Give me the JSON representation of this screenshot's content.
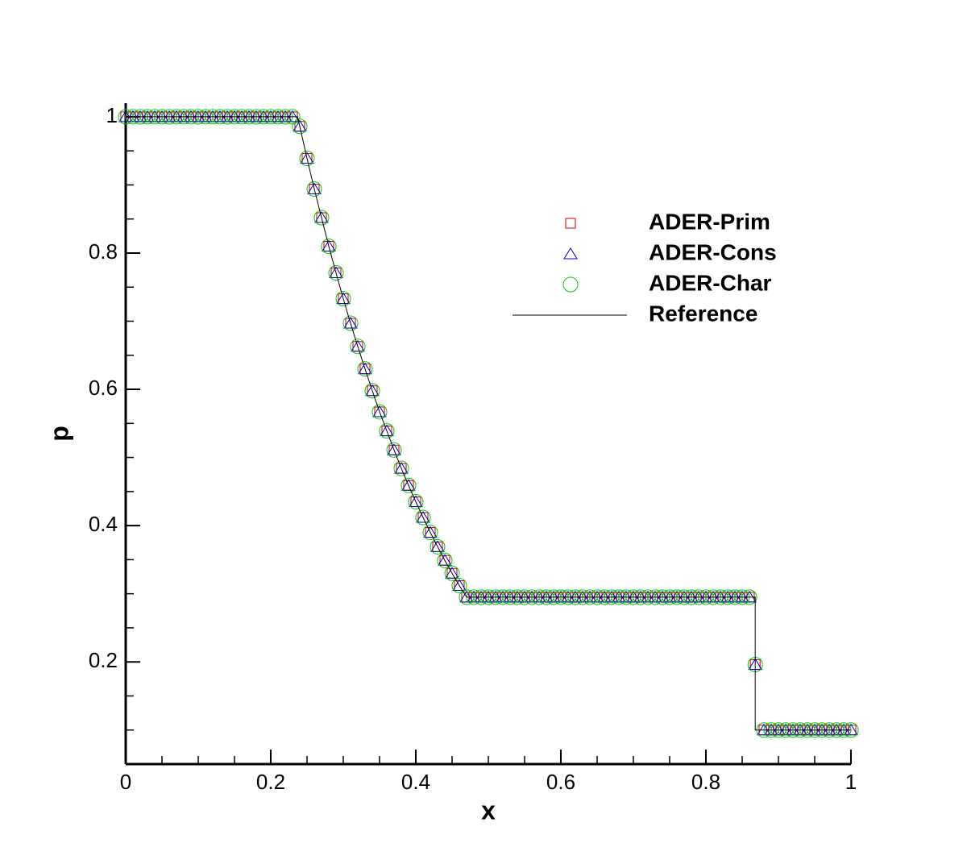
{
  "chart_data": {
    "type": "scatter",
    "xlabel": "x",
    "ylabel": "p",
    "xlim": [
      0,
      1
    ],
    "ylim": [
      0.05,
      1.02
    ],
    "xticks": [
      0,
      0.2,
      0.4,
      0.6,
      0.8,
      1
    ],
    "yticks": [
      0.2,
      0.4,
      0.6,
      0.8,
      1
    ],
    "xminorticks": [
      0.05,
      0.1,
      0.15,
      0.25,
      0.3,
      0.35,
      0.45,
      0.5,
      0.55,
      0.65,
      0.7,
      0.75,
      0.85,
      0.9,
      0.95
    ],
    "yminorticks": [
      0.1,
      0.15,
      0.25,
      0.3,
      0.35,
      0.45,
      0.5,
      0.55,
      0.65,
      0.7,
      0.75,
      0.85,
      0.9,
      0.95
    ],
    "legend": "upper right",
    "x": [
      0,
      0.01,
      0.02,
      0.03,
      0.04,
      0.05,
      0.06,
      0.07,
      0.08,
      0.09,
      0.1,
      0.11,
      0.12,
      0.13,
      0.14,
      0.15,
      0.16,
      0.17,
      0.18,
      0.19,
      0.2,
      0.21,
      0.22,
      0.23,
      0.24,
      0.25,
      0.26,
      0.27,
      0.28,
      0.29,
      0.3,
      0.31,
      0.32,
      0.33,
      0.34,
      0.35,
      0.36,
      0.37,
      0.38,
      0.39,
      0.4,
      0.41,
      0.42,
      0.43,
      0.44,
      0.45,
      0.46,
      0.47,
      0.48,
      0.49,
      0.5,
      0.51,
      0.52,
      0.53,
      0.54,
      0.55,
      0.56,
      0.57,
      0.58,
      0.59,
      0.6,
      0.61,
      0.62,
      0.63,
      0.64,
      0.65,
      0.66,
      0.67,
      0.68,
      0.69,
      0.7,
      0.71,
      0.72,
      0.73,
      0.74,
      0.75,
      0.76,
      0.77,
      0.78,
      0.79,
      0.8,
      0.81,
      0.82,
      0.83,
      0.84,
      0.85,
      0.86,
      0.868,
      0.88,
      0.89,
      0.9,
      0.91,
      0.92,
      0.93,
      0.94,
      0.95,
      0.96,
      0.97,
      0.98,
      0.99,
      1
    ],
    "series": [
      {
        "name": "ADER-Prim",
        "color": "#cc0000",
        "marker": "square",
        "values": [
          1,
          1,
          1,
          1,
          1,
          1,
          1,
          1,
          1,
          1,
          1,
          1,
          1,
          1,
          1,
          1,
          1,
          1,
          1,
          1,
          1,
          1,
          1,
          1,
          0.986,
          0.939,
          0.894,
          0.852,
          0.81,
          0.771,
          0.733,
          0.697,
          0.663,
          0.63,
          0.598,
          0.567,
          0.539,
          0.511,
          0.484,
          0.459,
          0.435,
          0.412,
          0.39,
          0.369,
          0.349,
          0.33,
          0.312,
          0.295,
          0.295,
          0.295,
          0.295,
          0.295,
          0.295,
          0.295,
          0.295,
          0.295,
          0.295,
          0.295,
          0.295,
          0.295,
          0.295,
          0.295,
          0.295,
          0.295,
          0.295,
          0.295,
          0.295,
          0.295,
          0.295,
          0.295,
          0.295,
          0.295,
          0.295,
          0.295,
          0.295,
          0.295,
          0.295,
          0.295,
          0.295,
          0.295,
          0.295,
          0.295,
          0.295,
          0.295,
          0.295,
          0.295,
          0.295,
          0.196,
          0.1,
          0.1,
          0.1,
          0.1,
          0.1,
          0.1,
          0.1,
          0.1,
          0.1,
          0.1,
          0.1,
          0.1,
          0.1
        ]
      },
      {
        "name": "ADER-Cons",
        "color": "#0000cc",
        "marker": "triangle",
        "values": [
          1,
          1,
          1,
          1,
          1,
          1,
          1,
          1,
          1,
          1,
          1,
          1,
          1,
          1,
          1,
          1,
          1,
          1,
          1,
          1,
          1,
          1,
          1,
          1,
          0.986,
          0.939,
          0.894,
          0.852,
          0.81,
          0.771,
          0.733,
          0.697,
          0.663,
          0.63,
          0.598,
          0.567,
          0.539,
          0.511,
          0.484,
          0.459,
          0.435,
          0.412,
          0.39,
          0.369,
          0.349,
          0.33,
          0.312,
          0.295,
          0.295,
          0.295,
          0.295,
          0.295,
          0.295,
          0.295,
          0.295,
          0.295,
          0.295,
          0.295,
          0.295,
          0.295,
          0.295,
          0.295,
          0.295,
          0.295,
          0.295,
          0.295,
          0.295,
          0.295,
          0.295,
          0.295,
          0.295,
          0.295,
          0.295,
          0.295,
          0.295,
          0.295,
          0.295,
          0.295,
          0.295,
          0.295,
          0.295,
          0.295,
          0.295,
          0.295,
          0.295,
          0.295,
          0.295,
          0.196,
          0.1,
          0.1,
          0.1,
          0.1,
          0.1,
          0.1,
          0.1,
          0.1,
          0.1,
          0.1,
          0.1,
          0.1,
          0.1
        ]
      },
      {
        "name": "ADER-Char",
        "color": "#00cc00",
        "marker": "circle",
        "values": [
          1,
          1,
          1,
          1,
          1,
          1,
          1,
          1,
          1,
          1,
          1,
          1,
          1,
          1,
          1,
          1,
          1,
          1,
          1,
          1,
          1,
          1,
          1,
          1,
          0.986,
          0.939,
          0.894,
          0.852,
          0.81,
          0.771,
          0.733,
          0.697,
          0.663,
          0.63,
          0.598,
          0.567,
          0.539,
          0.511,
          0.484,
          0.459,
          0.435,
          0.412,
          0.39,
          0.369,
          0.349,
          0.33,
          0.312,
          0.295,
          0.295,
          0.295,
          0.295,
          0.295,
          0.295,
          0.295,
          0.295,
          0.295,
          0.295,
          0.295,
          0.295,
          0.295,
          0.295,
          0.295,
          0.295,
          0.295,
          0.295,
          0.295,
          0.295,
          0.295,
          0.295,
          0.295,
          0.295,
          0.295,
          0.295,
          0.295,
          0.295,
          0.295,
          0.295,
          0.295,
          0.295,
          0.295,
          0.295,
          0.295,
          0.295,
          0.295,
          0.295,
          0.295,
          0.295,
          0.196,
          0.1,
          0.1,
          0.1,
          0.1,
          0.1,
          0.1,
          0.1,
          0.1,
          0.1,
          0.1,
          0.1,
          0.1,
          0.1
        ]
      },
      {
        "name": "Reference",
        "color": "#000000",
        "marker": "line",
        "x": [
          0,
          0.237,
          0.25,
          0.26,
          0.27,
          0.28,
          0.29,
          0.3,
          0.31,
          0.32,
          0.33,
          0.34,
          0.35,
          0.36,
          0.37,
          0.38,
          0.39,
          0.4,
          0.41,
          0.42,
          0.43,
          0.44,
          0.45,
          0.46,
          0.47,
          0.868,
          0.868,
          1
        ],
        "values": [
          1,
          1,
          0.939,
          0.894,
          0.852,
          0.81,
          0.771,
          0.733,
          0.697,
          0.663,
          0.63,
          0.598,
          0.567,
          0.539,
          0.511,
          0.484,
          0.459,
          0.435,
          0.412,
          0.39,
          0.369,
          0.349,
          0.33,
          0.312,
          0.295,
          0.295,
          0.1,
          0.1
        ]
      }
    ]
  }
}
